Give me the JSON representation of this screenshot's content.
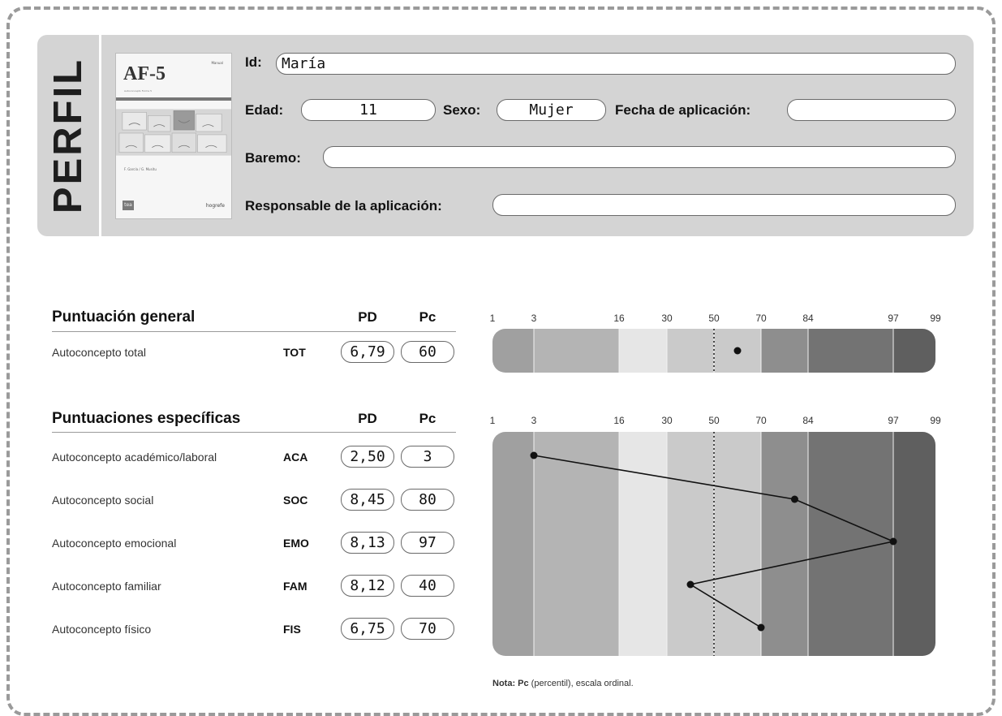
{
  "header": {
    "perfil_label": "PERFIL",
    "cover": {
      "title": "AF-5",
      "tag": "Manual",
      "subtitle": "Autoconcepto Forma 5",
      "authors": "F. García / G. Musitu",
      "logo_text": "tea",
      "brand_text": "hogrefe"
    },
    "fields": {
      "id_label": "Id:",
      "id_value": "María",
      "edad_label": "Edad:",
      "edad_value": "11",
      "sexo_label": "Sexo:",
      "sexo_value": "Mujer",
      "fecha_label": "Fecha de aplicación:",
      "fecha_value": "",
      "baremo_label": "Baremo:",
      "baremo_value": "",
      "responsable_label": "Responsable de la aplicación:",
      "responsable_value": ""
    }
  },
  "general": {
    "title": "Puntuación general",
    "col_pd": "PD",
    "col_pc": "Pc",
    "rows": [
      {
        "label": "Autoconcepto total",
        "code": "TOT",
        "pd": "6,79",
        "pc": "60"
      }
    ]
  },
  "specific": {
    "title": "Puntuaciones específicas",
    "col_pd": "PD",
    "col_pc": "Pc",
    "rows": [
      {
        "label": "Autoconcepto académico/laboral",
        "code": "ACA",
        "pd": "2,50",
        "pc": "3"
      },
      {
        "label": "Autoconcepto social",
        "code": "SOC",
        "pd": "8,45",
        "pc": "80"
      },
      {
        "label": "Autoconcepto emocional",
        "code": "EMO",
        "pd": "8,13",
        "pc": "97"
      },
      {
        "label": "Autoconcepto familiar",
        "code": "FAM",
        "pd": "8,12",
        "pc": "40"
      },
      {
        "label": "Autoconcepto físico",
        "code": "FIS",
        "pd": "6,75",
        "pc": "70"
      }
    ]
  },
  "chart_data": {
    "type": "line",
    "percentile_ticks": [
      1,
      3,
      16,
      30,
      50,
      70,
      84,
      97,
      99
    ],
    "tick_labels": [
      "1",
      "3",
      "16",
      "30",
      "50",
      "70",
      "84",
      "97",
      "99"
    ],
    "band_colors": [
      "#a0a0a0",
      "#b4b4b4",
      "#e6e6e6",
      "#cacaca",
      "#cacaca",
      "#8e8e8e",
      "#737373",
      "#5f5f5f"
    ],
    "median_line": 50,
    "general_point": {
      "code": "TOT",
      "pc": 60
    },
    "specific_points": [
      {
        "code": "ACA",
        "pc": 3
      },
      {
        "code": "SOC",
        "pc": 80
      },
      {
        "code": "EMO",
        "pc": 97
      },
      {
        "code": "FAM",
        "pc": 40
      },
      {
        "code": "FIS",
        "pc": 70
      }
    ]
  },
  "note": {
    "bold": "Nota: Pc",
    "text": " (percentil), escala ordinal."
  }
}
